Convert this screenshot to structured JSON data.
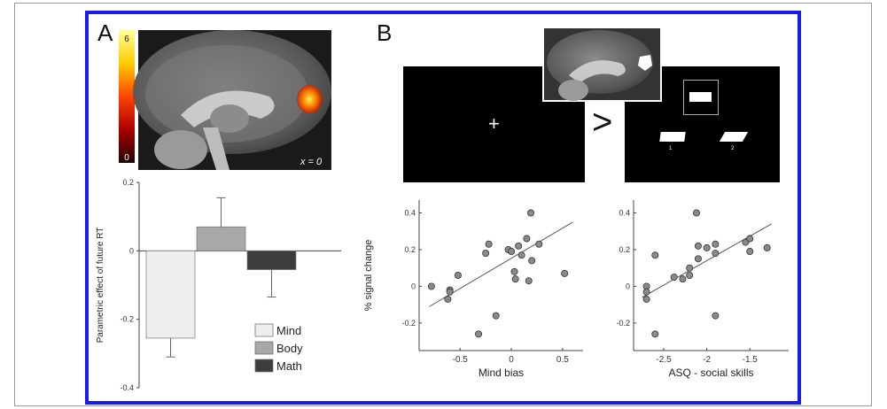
{
  "panels": {
    "a_label": "A",
    "b_label": "B"
  },
  "brain_a": {
    "slice_label": "x = 0",
    "colorbar_max": "6",
    "colorbar_min": "0"
  },
  "stimuli": {
    "fixation_symbol": "+",
    "contrast_symbol": ">",
    "option1_label": "1",
    "option2_label": "2"
  },
  "chart_data": [
    {
      "type": "bar",
      "title": "",
      "xlabel": "",
      "ylabel": "Parametric effect of future RT",
      "ylim": [
        -0.4,
        0.2
      ],
      "yticks": [
        0.2,
        0,
        -0.2,
        -0.4
      ],
      "ytick_labels": [
        "0.2",
        "0",
        "-0.2",
        "-0.4"
      ],
      "categories": [
        "Mind",
        "Body",
        "Math"
      ],
      "values": [
        -0.255,
        0.07,
        -0.055
      ],
      "errors": [
        0.055,
        0.085,
        0.08
      ],
      "colors": [
        "#eeeeee",
        "#a8a8a8",
        "#3d3d3d"
      ],
      "legend": [
        "Mind",
        "Body",
        "Math"
      ],
      "legend_position": "bottom-right"
    },
    {
      "type": "scatter",
      "title": "",
      "xlabel": "Mind bias",
      "ylabel": "% signal change",
      "xlim": [
        -0.9,
        0.7
      ],
      "ylim": [
        -0.35,
        0.47
      ],
      "xticks": [
        -0.5,
        0,
        0.5
      ],
      "xtick_labels": [
        "-0.5",
        "0",
        "0.5"
      ],
      "yticks": [
        -0.2,
        0,
        0.2,
        0.4
      ],
      "ytick_labels": [
        "-0.2",
        "0",
        "0.2",
        "0.4"
      ],
      "points": [
        {
          "x": -0.78,
          "y": 0.0
        },
        {
          "x": -0.6,
          "y": -0.02
        },
        {
          "x": -0.6,
          "y": -0.03
        },
        {
          "x": -0.62,
          "y": -0.07
        },
        {
          "x": -0.52,
          "y": 0.06
        },
        {
          "x": -0.32,
          "y": -0.26
        },
        {
          "x": -0.25,
          "y": 0.18
        },
        {
          "x": -0.22,
          "y": 0.23
        },
        {
          "x": -0.15,
          "y": -0.16
        },
        {
          "x": -0.03,
          "y": 0.2
        },
        {
          "x": 0.0,
          "y": 0.19
        },
        {
          "x": 0.03,
          "y": 0.08
        },
        {
          "x": 0.04,
          "y": 0.04
        },
        {
          "x": 0.07,
          "y": 0.22
        },
        {
          "x": 0.1,
          "y": 0.17
        },
        {
          "x": 0.15,
          "y": 0.26
        },
        {
          "x": 0.17,
          "y": 0.03
        },
        {
          "x": 0.19,
          "y": 0.4
        },
        {
          "x": 0.2,
          "y": 0.14
        },
        {
          "x": 0.27,
          "y": 0.23
        },
        {
          "x": 0.52,
          "y": 0.07
        }
      ],
      "fit_line": [
        {
          "x": -0.8,
          "y": -0.11
        },
        {
          "x": 0.6,
          "y": 0.35
        }
      ]
    },
    {
      "type": "scatter",
      "title": "",
      "xlabel": "ASQ - social skills",
      "ylabel": "",
      "xlim": [
        -2.85,
        -1.05
      ],
      "ylim": [
        -0.35,
        0.47
      ],
      "xticks": [
        -2.5,
        -2,
        -1.5
      ],
      "xtick_labels": [
        "-2.5",
        "-2",
        "-1.5"
      ],
      "yticks": [
        -0.2,
        0,
        0.2,
        0.4
      ],
      "ytick_labels": [
        "-0.2",
        "0",
        "0.2",
        "0.4"
      ],
      "points": [
        {
          "x": -2.7,
          "y": 0.0
        },
        {
          "x": -2.7,
          "y": -0.03
        },
        {
          "x": -2.7,
          "y": -0.07
        },
        {
          "x": -2.6,
          "y": 0.17
        },
        {
          "x": -2.6,
          "y": -0.26
        },
        {
          "x": -2.38,
          "y": 0.05
        },
        {
          "x": -2.28,
          "y": 0.04
        },
        {
          "x": -2.2,
          "y": 0.06
        },
        {
          "x": -2.2,
          "y": 0.1
        },
        {
          "x": -2.12,
          "y": 0.4
        },
        {
          "x": -2.1,
          "y": 0.22
        },
        {
          "x": -2.1,
          "y": 0.15
        },
        {
          "x": -2.0,
          "y": 0.21
        },
        {
          "x": -1.9,
          "y": 0.23
        },
        {
          "x": -1.9,
          "y": 0.18
        },
        {
          "x": -1.9,
          "y": -0.16
        },
        {
          "x": -1.55,
          "y": 0.24
        },
        {
          "x": -1.5,
          "y": 0.26
        },
        {
          "x": -1.5,
          "y": 0.19
        },
        {
          "x": -1.3,
          "y": 0.21
        }
      ],
      "fit_line": [
        {
          "x": -2.75,
          "y": -0.06
        },
        {
          "x": -1.25,
          "y": 0.34
        }
      ]
    }
  ]
}
